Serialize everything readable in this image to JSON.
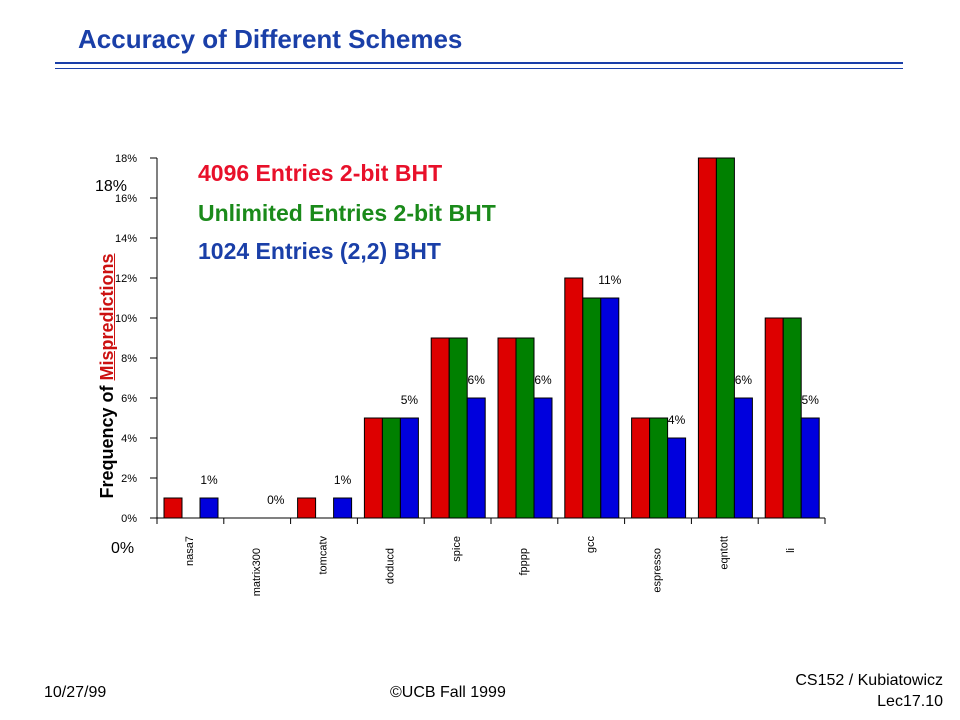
{
  "slide": {
    "title": "Accuracy of Different Schemes",
    "footer_date": "10/27/99",
    "footer_copyright": "©UCB Fall 1999",
    "footer_course": "CS152 / Kubiatowicz",
    "footer_lecture": "Lec17.10"
  },
  "chart_data": {
    "type": "bar",
    "ylabel_prefix": "Frequency of ",
    "ylabel_highlight": "Mispredictions",
    "outer_ytick_top": "18%",
    "outer_ytick_bottom": "0%",
    "ylim": [
      0,
      18
    ],
    "yticks": [
      "0%",
      "2%",
      "4%",
      "6%",
      "8%",
      "10%",
      "12%",
      "14%",
      "16%",
      "18%"
    ],
    "categories": [
      "nasa7",
      "matrix300",
      "tomcatv",
      "doducd",
      "spice",
      "fpppp",
      "gcc",
      "espresso",
      "eqntott",
      "li"
    ],
    "series": [
      {
        "name": "4096 Entries 2-bit BHT",
        "color": "#dd0000",
        "values": [
          1,
          0,
          1,
          5,
          9,
          9,
          12,
          5,
          18,
          10
        ]
      },
      {
        "name": "Unlimited Entries 2-bit BHT",
        "color": "#008000",
        "values": [
          0,
          0,
          0,
          5,
          9,
          9,
          11,
          5,
          18,
          10
        ]
      },
      {
        "name": "1024 Entries (2,2) BHT",
        "color": "#0000dd",
        "values": [
          1,
          0,
          1,
          5,
          6,
          6,
          11,
          4,
          6,
          5
        ]
      }
    ],
    "data_labels": [
      "1%",
      "0%",
      "1%",
      "5%",
      "6%",
      "6%",
      "11%",
      "4%",
      "6%",
      "5%"
    ],
    "legend_colors": [
      "#e8102a",
      "#1a8a1a",
      "#1a3fa8"
    ],
    "grid": false,
    "legend_position": "top-left"
  }
}
